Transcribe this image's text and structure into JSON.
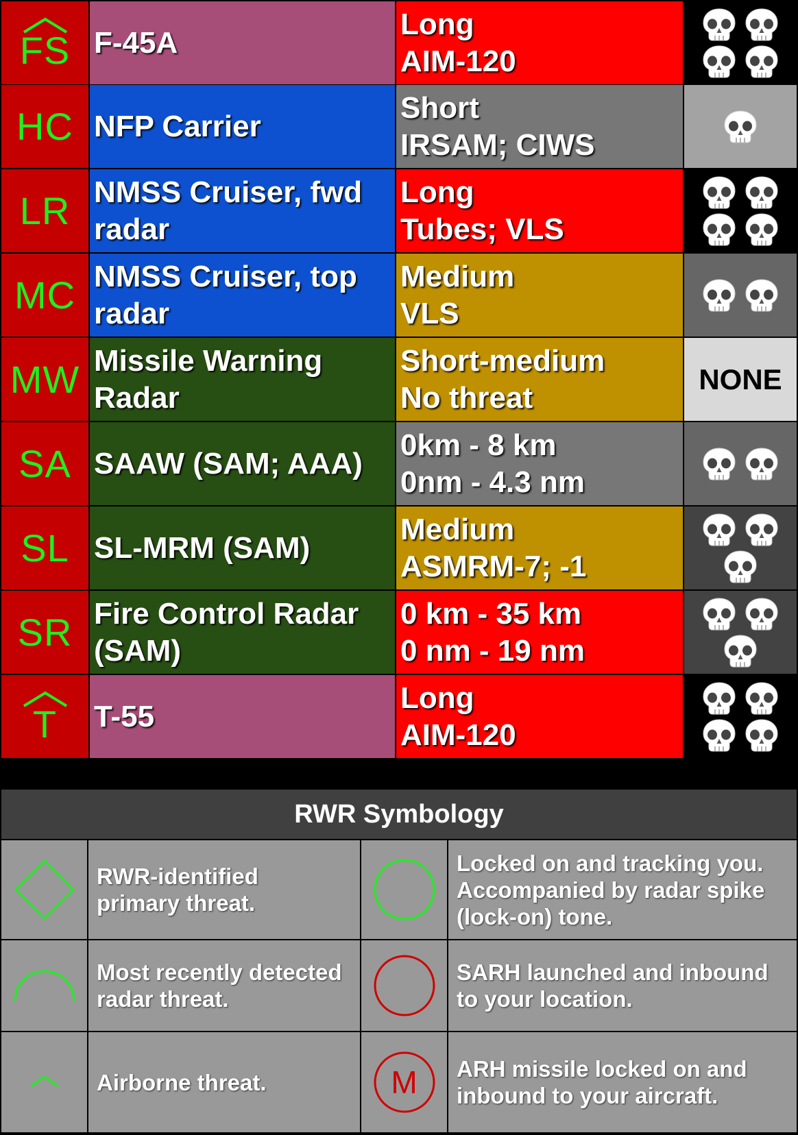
{
  "threats": [
    {
      "code": "FS",
      "caret": true,
      "name": [
        "F-45A"
      ],
      "range": [
        "Long",
        "AIM-120"
      ],
      "name_bg": "#a74e78",
      "range_bg": "#ff0000",
      "danger_bg": "#000000",
      "danger": 4,
      "danger_label": ""
    },
    {
      "code": "HC",
      "caret": false,
      "name": [
        "NFP Carrier"
      ],
      "range": [
        "Short",
        "IRSAM; CIWS"
      ],
      "name_bg": "#0d51d0",
      "range_bg": "#777777",
      "danger_bg": "#a3a3a3",
      "danger": 1,
      "danger_label": ""
    },
    {
      "code": "LR",
      "caret": false,
      "name": [
        "NMSS Cruiser, fwd",
        "radar"
      ],
      "range": [
        "Long",
        "Tubes; VLS"
      ],
      "name_bg": "#0d51d0",
      "range_bg": "#ff0000",
      "danger_bg": "#000000",
      "danger": 4,
      "danger_label": ""
    },
    {
      "code": "MC",
      "caret": false,
      "name": [
        "NMSS Cruiser, top",
        "radar"
      ],
      "range": [
        "Medium",
        "VLS"
      ],
      "name_bg": "#0d51d0",
      "range_bg": "#bf9000",
      "danger_bg": "#666666",
      "danger": 2,
      "danger_label": ""
    },
    {
      "code": "MW",
      "caret": false,
      "name": [
        "Missile Warning",
        "Radar"
      ],
      "range": [
        "Short-medium",
        "No threat"
      ],
      "name_bg": "#274e13",
      "range_bg": "#bf9000",
      "danger_bg": "#d9d9d9",
      "danger": 0,
      "danger_label": "NONE"
    },
    {
      "code": "SA",
      "caret": false,
      "name": [
        "SAAW (SAM; AAA)"
      ],
      "range": [
        "0km - 8 km",
        "0nm - 4.3 nm"
      ],
      "name_bg": "#274e13",
      "range_bg": "#777777",
      "danger_bg": "#666666",
      "danger": 2,
      "danger_label": ""
    },
    {
      "code": "SL",
      "caret": false,
      "name": [
        "SL-MRM (SAM)"
      ],
      "range": [
        "Medium",
        "ASMRM-7; -1"
      ],
      "name_bg": "#274e13",
      "range_bg": "#bf9000",
      "danger_bg": "#434343",
      "danger": 3,
      "danger_label": ""
    },
    {
      "code": "SR",
      "caret": false,
      "name": [
        "Fire Control Radar",
        "(SAM)"
      ],
      "range": [
        "0 km - 35 km",
        "0 nm - 19 nm"
      ],
      "name_bg": "#274e13",
      "range_bg": "#ff0000",
      "danger_bg": "#434343",
      "danger": 3,
      "danger_label": ""
    },
    {
      "code": "T",
      "caret": true,
      "name": [
        "T-55"
      ],
      "range": [
        "Long",
        "AIM-120"
      ],
      "name_bg": "#a74e78",
      "range_bg": "#ff0000",
      "danger_bg": "#000000",
      "danger": 4,
      "danger_label": ""
    }
  ],
  "symbology": {
    "title": "RWR Symbology",
    "items": [
      {
        "icon": "diamond-icon",
        "lines": [
          "RWR-identified",
          "primary threat."
        ]
      },
      {
        "icon": "green-circle-icon",
        "lines": [
          "Locked on and tracking you.",
          "Accompanied by radar spike",
          "(lock-on) tone."
        ]
      },
      {
        "icon": "arc-icon",
        "lines": [
          "Most recently detected",
          "radar threat."
        ]
      },
      {
        "icon": "red-circle-icon",
        "lines": [
          "SARH launched and inbound",
          "to your location."
        ]
      },
      {
        "icon": "caret-icon",
        "lines": [
          "Airborne threat."
        ]
      },
      {
        "icon": "m-circle-icon",
        "icon_text": "M",
        "lines": [
          "ARH missile locked on and",
          "inbound to your aircraft."
        ]
      }
    ]
  },
  "colors": {
    "code_bg": "#c40000",
    "code_text": "#1ef01e",
    "symbol_green": "#1ef01e",
    "symbol_red": "#d00000",
    "symbology_cell_bg": "#999999",
    "symbology_header_bg": "#404040"
  }
}
